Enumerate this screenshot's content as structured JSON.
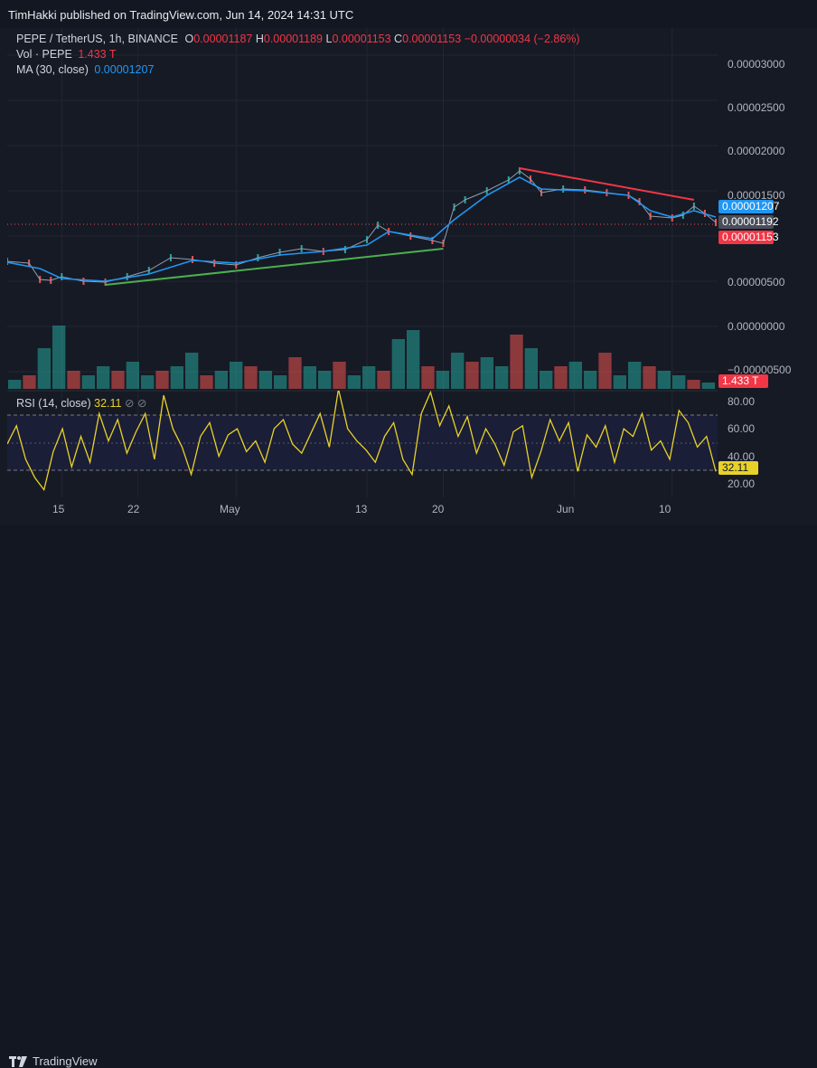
{
  "header": {
    "publisher": "TimHakki published on TradingView.com, Jun 14, 2024 14:31 UTC"
  },
  "legend": {
    "symbol": "PEPE / TetherUS, 1h, BINANCE",
    "o_label": "O",
    "o_value": "0.00001187",
    "h_label": "H",
    "h_value": "0.00001189",
    "l_label": "L",
    "l_value": "0.00001153",
    "c_label": "C",
    "c_value": "0.00001153",
    "change": "−0.00000034 (−2.86%)",
    "vol_label": "Vol · PEPE",
    "vol_value": "1.433 T",
    "ma_label": "MA (30, close)",
    "ma_value": "0.00001207",
    "rsi_label": "RSI (14, close)",
    "rsi_value": "32.11"
  },
  "price_axis": {
    "ticks": [
      "0.00003000",
      "0.00002500",
      "0.00002000",
      "0.00001500",
      "0.00000500",
      "0.00000000",
      "−0.00000500"
    ],
    "tags": {
      "ma": "0.00001207",
      "last": "0.00001192",
      "close": "0.00001153",
      "volume": "1.433 T"
    }
  },
  "rsi_axis": {
    "ticks": [
      "80.00",
      "60.00",
      "40.00",
      "20.00"
    ],
    "tag": "32.11"
  },
  "time_axis": {
    "ticks": [
      "15",
      "22",
      "May",
      "13",
      "20",
      "Jun",
      "10"
    ]
  },
  "footer": {
    "brand": "TradingView"
  },
  "colors": {
    "background": "#161a25",
    "up": "#26a69a",
    "down": "#ef5350",
    "ma": "#2196f3",
    "rsi": "#e8d22a",
    "support": "#4caf50",
    "resistance": "#f23645"
  },
  "chart_data": [
    {
      "type": "line",
      "title": "PEPE / TetherUS, 1h, BINANCE",
      "series": [
        {
          "name": "PEPE / TetherUS",
          "points": [
            [
              "Apr 10",
              7.2e-06
            ],
            [
              "Apr 12",
              7e-06
            ],
            [
              "Apr 13",
              5.2e-06
            ],
            [
              "Apr 14",
              5.1e-06
            ],
            [
              "Apr 15",
              5.5e-06
            ],
            [
              "Apr 17",
              5e-06
            ],
            [
              "Apr 19",
              4.9e-06
            ],
            [
              "Apr 21",
              5.5e-06
            ],
            [
              "Apr 23",
              6.2e-06
            ],
            [
              "Apr 25",
              7.6e-06
            ],
            [
              "Apr 27",
              7.4e-06
            ],
            [
              "Apr 29",
              7e-06
            ],
            [
              "May 1",
              6.8e-06
            ],
            [
              "May 3",
              7.6e-06
            ],
            [
              "May 5",
              8.2e-06
            ],
            [
              "May 7",
              8.6e-06
            ],
            [
              "May 9",
              8.3e-06
            ],
            [
              "May 11",
              8.5e-06
            ],
            [
              "May 13",
              9.6e-06
            ],
            [
              "May 14",
              1.12e-05
            ],
            [
              "May 15",
              1.05e-05
            ],
            [
              "May 17",
              1e-05
            ],
            [
              "May 19",
              9.5e-06
            ],
            [
              "May 20",
              9.2e-06
            ],
            [
              "May 21",
              1.32e-05
            ],
            [
              "May 22",
              1.4e-05
            ],
            [
              "May 24",
              1.5e-05
            ],
            [
              "May 26",
              1.62e-05
            ],
            [
              "May 27",
              1.72e-05
            ],
            [
              "May 28",
              1.63e-05
            ],
            [
              "May 29",
              1.48e-05
            ],
            [
              "May 31",
              1.52e-05
            ],
            [
              "Jun 2",
              1.51e-05
            ],
            [
              "Jun 4",
              1.48e-05
            ],
            [
              "Jun 6",
              1.45e-05
            ],
            [
              "Jun 7",
              1.38e-05
            ],
            [
              "Jun 8",
              1.22e-05
            ],
            [
              "Jun 10",
              1.2e-05
            ],
            [
              "Jun 11",
              1.23e-05
            ],
            [
              "Jun 12",
              1.33e-05
            ],
            [
              "Jun 13",
              1.25e-05
            ],
            [
              "Jun 14",
              1.15e-05
            ]
          ]
        },
        {
          "name": "MA (30, close)",
          "points": [
            [
              "Apr 10",
              7.1e-06
            ],
            [
              "Apr 13",
              6.4e-06
            ],
            [
              "Apr 15",
              5.3e-06
            ],
            [
              "Apr 19",
              5e-06
            ],
            [
              "Apr 23",
              5.8e-06
            ],
            [
              "Apr 27",
              7.3e-06
            ],
            [
              "May 1",
              7e-06
            ],
            [
              "May 5",
              7.9e-06
            ],
            [
              "May 9",
              8.3e-06
            ],
            [
              "May 13",
              9e-06
            ],
            [
              "May 15",
              1.05e-05
            ],
            [
              "May 19",
              9.7e-06
            ],
            [
              "May 21",
              1.18e-05
            ],
            [
              "May 24",
              1.45e-05
            ],
            [
              "May 27",
              1.65e-05
            ],
            [
              "May 29",
              1.52e-05
            ],
            [
              "Jun 2",
              1.5e-05
            ],
            [
              "Jun 6",
              1.45e-05
            ],
            [
              "Jun 8",
              1.28e-05
            ],
            [
              "Jun 10",
              1.21e-05
            ],
            [
              "Jun 12",
              1.28e-05
            ],
            [
              "Jun 14",
              1.21e-05
            ]
          ]
        }
      ],
      "trendlines": [
        {
          "name": "support",
          "from": [
            "Apr 19",
            4.6e-06
          ],
          "to": [
            "May 20",
            8.6e-06
          ]
        },
        {
          "name": "resistance",
          "from": [
            "May 27",
            1.75e-05
          ],
          "to": [
            "Jun 12",
            1.4e-05
          ]
        }
      ],
      "ylim": [
        -7e-06,
        3.3e-05
      ]
    },
    {
      "type": "bar",
      "title": "Vol · PEPE",
      "series": [
        {
          "name": "Vol · PEPE",
          "values": [
            2,
            3,
            9,
            14,
            4,
            3,
            5,
            4,
            6,
            3,
            4,
            5,
            8,
            3,
            4,
            6,
            5,
            4,
            3,
            7,
            5,
            4,
            6,
            3,
            5,
            4,
            11,
            13,
            5,
            4,
            8,
            6,
            7,
            5,
            12,
            9,
            4,
            5,
            6,
            4,
            8,
            3,
            6,
            5,
            4,
            3,
            2,
            1.4
          ]
        }
      ]
    },
    {
      "type": "line",
      "title": "RSI (14, close)",
      "series": [
        {
          "name": "RSI (14, close)",
          "values": [
            50,
            62,
            40,
            28,
            20,
            45,
            60,
            35,
            55,
            38,
            70,
            52,
            66,
            44,
            58,
            70,
            40,
            82,
            60,
            48,
            30,
            55,
            64,
            42,
            56,
            60,
            45,
            52,
            38,
            60,
            66,
            50,
            44,
            57,
            70,
            48,
            86,
            60,
            52,
            46,
            38,
            55,
            64,
            40,
            30,
            70,
            84,
            62,
            75,
            55,
            68,
            44,
            60,
            50,
            36,
            58,
            62,
            28,
            45,
            66,
            52,
            64,
            32,
            56,
            48,
            62,
            38,
            60,
            55,
            70,
            46,
            52,
            40,
            72,
            64,
            48,
            55,
            32
          ]
        }
      ],
      "ylim": [
        15,
        85
      ]
    }
  ]
}
